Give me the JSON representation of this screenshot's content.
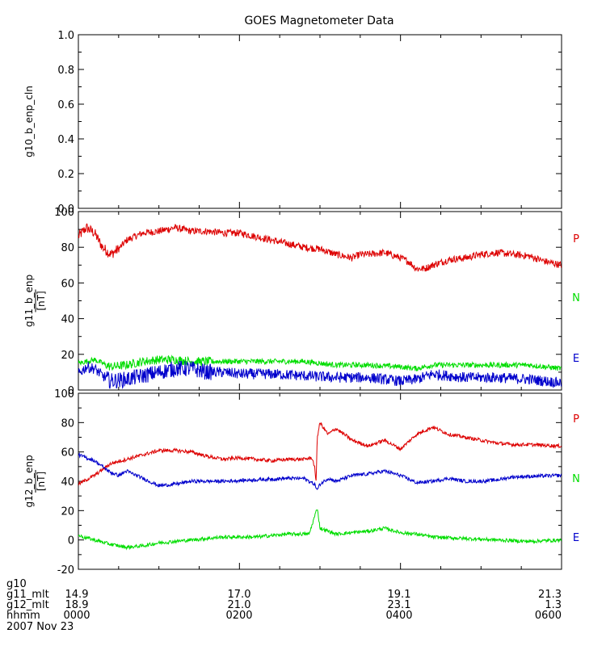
{
  "figure": {
    "title": "GOES Magnetometer Data",
    "footer": {
      "rows": [
        {
          "label": "g10",
          "values": [
            "",
            "",
            "",
            ""
          ]
        },
        {
          "label": "g11_mlt",
          "values": [
            "14.9",
            "17.0",
            "19.1",
            "21.3"
          ]
        },
        {
          "label": "g12_mlt",
          "values": [
            "18.9",
            "21.0",
            "23.1",
            "1.3"
          ]
        },
        {
          "label": "hhmm",
          "values": [
            "0000",
            "0200",
            "0400",
            "0600"
          ]
        }
      ],
      "date": "2007 Nov 23"
    },
    "colors": {
      "P": "#dd0000",
      "N": "#00dd00",
      "E": "#0000cc",
      "axis": "#000000"
    }
  },
  "chart_data": [
    {
      "type": "line",
      "ylabel": "g10_b_enp_cln",
      "unit": "",
      "xlim": [
        0,
        360
      ],
      "xticks_minutes": [
        0,
        120,
        240,
        360
      ],
      "ylim": [
        0,
        1
      ],
      "yticks": [
        "0.0",
        "0.2",
        "0.4",
        "0.6",
        "0.8",
        "1.0"
      ],
      "series": []
    },
    {
      "type": "line",
      "ylabel": "g11_b_enp",
      "unit": "[nT]",
      "xlim": [
        0,
        360
      ],
      "xticks_minutes": [
        0,
        120,
        240,
        360
      ],
      "ylim": [
        0,
        100
      ],
      "yticks": [
        "0",
        "20",
        "40",
        "60",
        "80",
        "100"
      ],
      "series": [
        {
          "name": "P",
          "color": "#dd0000",
          "noise": 2.0,
          "points": [
            [
              0,
              86
            ],
            [
              6,
              91
            ],
            [
              12,
              88
            ],
            [
              18,
              80
            ],
            [
              24,
              76
            ],
            [
              30,
              79
            ],
            [
              36,
              84
            ],
            [
              48,
              88
            ],
            [
              60,
              89
            ],
            [
              72,
              91
            ],
            [
              84,
              89
            ],
            [
              96,
              89
            ],
            [
              108,
              88
            ],
            [
              120,
              88
            ],
            [
              132,
              86
            ],
            [
              144,
              84
            ],
            [
              156,
              82
            ],
            [
              168,
              80
            ],
            [
              180,
              79
            ],
            [
              192,
              76
            ],
            [
              204,
              74
            ],
            [
              210,
              76
            ],
            [
              216,
              76
            ],
            [
              228,
              77
            ],
            [
              240,
              74
            ],
            [
              246,
              72
            ],
            [
              252,
              68
            ],
            [
              258,
              68
            ],
            [
              264,
              70
            ],
            [
              276,
              73
            ],
            [
              288,
              74
            ],
            [
              300,
              76
            ],
            [
              312,
              77
            ],
            [
              324,
              76
            ],
            [
              336,
              75
            ],
            [
              348,
              72
            ],
            [
              360,
              70
            ]
          ]
        },
        {
          "name": "N",
          "color": "#00dd00",
          "noise": 1.5,
          "points": [
            [
              0,
              15
            ],
            [
              12,
              17
            ],
            [
              24,
              13
            ],
            [
              36,
              14
            ],
            [
              48,
              16
            ],
            [
              60,
              17
            ],
            [
              72,
              17
            ],
            [
              84,
              16
            ],
            [
              96,
              16
            ],
            [
              120,
              16
            ],
            [
              144,
              16
            ],
            [
              168,
              16
            ],
            [
              192,
              14
            ],
            [
              216,
              14
            ],
            [
              240,
              13
            ],
            [
              252,
              12
            ],
            [
              264,
              14
            ],
            [
              288,
              14
            ],
            [
              312,
              14
            ],
            [
              336,
              14
            ],
            [
              360,
              12
            ]
          ]
        },
        {
          "name": "E",
          "color": "#0000cc",
          "noise": 3.0,
          "points": [
            [
              0,
              9
            ],
            [
              6,
              13
            ],
            [
              12,
              12
            ],
            [
              18,
              8
            ],
            [
              24,
              5
            ],
            [
              36,
              6
            ],
            [
              48,
              8
            ],
            [
              60,
              10
            ],
            [
              72,
              12
            ],
            [
              84,
              12
            ],
            [
              96,
              10
            ],
            [
              108,
              10
            ],
            [
              120,
              9
            ],
            [
              144,
              9
            ],
            [
              168,
              8
            ],
            [
              192,
              7
            ],
            [
              216,
              7
            ],
            [
              240,
              5
            ],
            [
              252,
              6
            ],
            [
              264,
              9
            ],
            [
              288,
              7
            ],
            [
              312,
              7
            ],
            [
              336,
              6
            ],
            [
              360,
              4
            ]
          ]
        }
      ]
    },
    {
      "type": "line",
      "ylabel": "g12_b_enp",
      "unit": "[nT]",
      "xlim": [
        0,
        360
      ],
      "xticks_minutes": [
        0,
        120,
        240,
        360
      ],
      "ylim": [
        -20,
        100
      ],
      "yticks": [
        "-20",
        "0",
        "20",
        "40",
        "60",
        "80",
        "100"
      ],
      "series": [
        {
          "name": "P",
          "color": "#dd0000",
          "noise": 1.2,
          "points": [
            [
              0,
              38
            ],
            [
              12,
              44
            ],
            [
              24,
              52
            ],
            [
              36,
              55
            ],
            [
              48,
              58
            ],
            [
              60,
              61
            ],
            [
              72,
              61
            ],
            [
              84,
              60
            ],
            [
              96,
              57
            ],
            [
              108,
              55
            ],
            [
              120,
              56
            ],
            [
              132,
              55
            ],
            [
              144,
              54
            ],
            [
              156,
              55
            ],
            [
              168,
              55
            ],
            [
              174,
              56
            ],
            [
              176,
              50
            ],
            [
              177,
              38
            ],
            [
              178,
              70
            ],
            [
              180,
              80
            ],
            [
              186,
              72
            ],
            [
              192,
              76
            ],
            [
              204,
              68
            ],
            [
              216,
              64
            ],
            [
              228,
              68
            ],
            [
              240,
              62
            ],
            [
              252,
              72
            ],
            [
              264,
              77
            ],
            [
              276,
              72
            ],
            [
              288,
              70
            ],
            [
              300,
              68
            ],
            [
              312,
              66
            ],
            [
              324,
              65
            ],
            [
              336,
              65
            ],
            [
              360,
              64
            ]
          ]
        },
        {
          "name": "N",
          "color": "#00dd00",
          "noise": 1.2,
          "points": [
            [
              0,
              3
            ],
            [
              12,
              0
            ],
            [
              24,
              -3
            ],
            [
              36,
              -5
            ],
            [
              48,
              -4
            ],
            [
              60,
              -2
            ],
            [
              84,
              0
            ],
            [
              108,
              2
            ],
            [
              132,
              2
            ],
            [
              156,
              4
            ],
            [
              172,
              4
            ],
            [
              178,
              22
            ],
            [
              180,
              8
            ],
            [
              192,
              4
            ],
            [
              204,
              5
            ],
            [
              216,
              6
            ],
            [
              228,
              8
            ],
            [
              240,
              5
            ],
            [
              252,
              4
            ],
            [
              264,
              2
            ],
            [
              288,
              1
            ],
            [
              312,
              0
            ],
            [
              336,
              -1
            ],
            [
              360,
              0
            ]
          ]
        },
        {
          "name": "E",
          "color": "#0000cc",
          "noise": 1.2,
          "points": [
            [
              0,
              58
            ],
            [
              12,
              54
            ],
            [
              24,
              46
            ],
            [
              30,
              44
            ],
            [
              36,
              47
            ],
            [
              48,
              42
            ],
            [
              60,
              37
            ],
            [
              72,
              38
            ],
            [
              84,
              40
            ],
            [
              108,
              40
            ],
            [
              132,
              41
            ],
            [
              156,
              42
            ],
            [
              168,
              42
            ],
            [
              176,
              38
            ],
            [
              178,
              34
            ],
            [
              180,
              38
            ],
            [
              186,
              42
            ],
            [
              192,
              40
            ],
            [
              204,
              44
            ],
            [
              216,
              45
            ],
            [
              228,
              47
            ],
            [
              240,
              44
            ],
            [
              252,
              39
            ],
            [
              264,
              40
            ],
            [
              276,
              42
            ],
            [
              288,
              40
            ],
            [
              300,
              40
            ],
            [
              312,
              41
            ],
            [
              324,
              43
            ],
            [
              360,
              44
            ]
          ]
        }
      ]
    }
  ]
}
